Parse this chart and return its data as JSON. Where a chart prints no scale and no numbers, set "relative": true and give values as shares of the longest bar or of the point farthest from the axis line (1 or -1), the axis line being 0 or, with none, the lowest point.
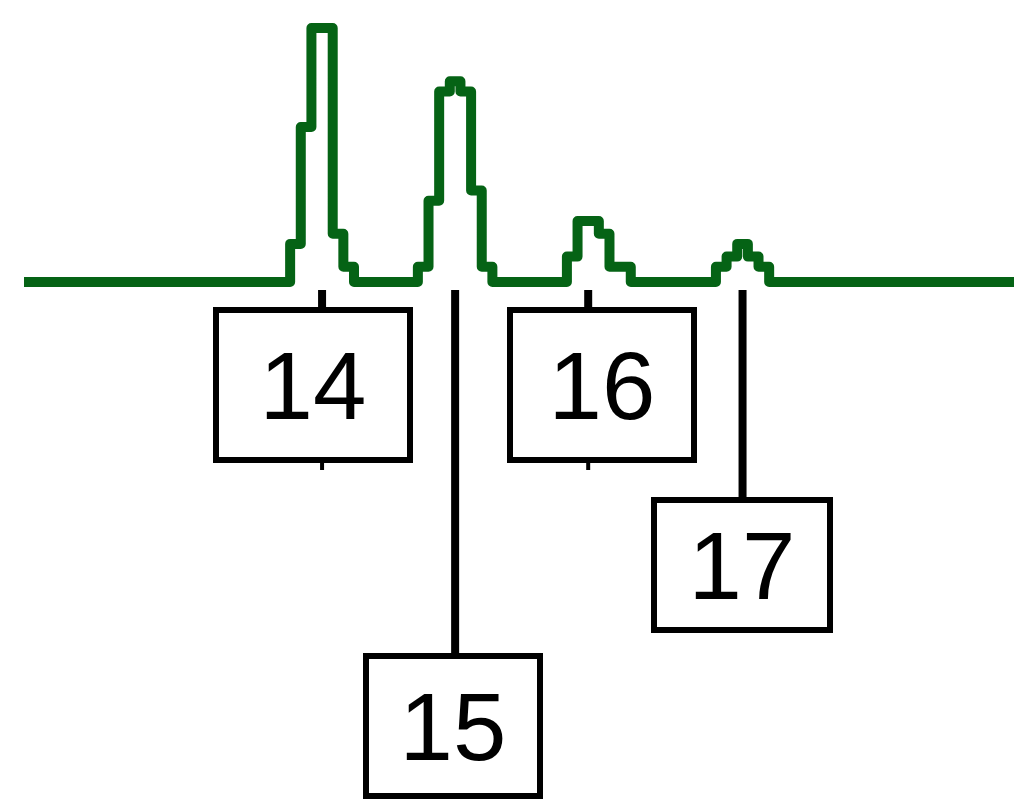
{
  "chart_data": {
    "type": "step",
    "relative": true,
    "categories": [
      null,
      null,
      null,
      null,
      null,
      null,
      null,
      null,
      null,
      null,
      null,
      null,
      null,
      null,
      null,
      null,
      null,
      null,
      null,
      null,
      null,
      null,
      null,
      null,
      null,
      null,
      null,
      null,
      null,
      null,
      null,
      null,
      null,
      null,
      null,
      null,
      null,
      null,
      null,
      null,
      null,
      null,
      null,
      null,
      null,
      null,
      null,
      null,
      null,
      null,
      null,
      null,
      null,
      null,
      null,
      null,
      null,
      null,
      null,
      null,
      null,
      null,
      null,
      null,
      null,
      null,
      null,
      null,
      null,
      null,
      null,
      null,
      null,
      null,
      null,
      null,
      null,
      null,
      null,
      null,
      null,
      null,
      null,
      null,
      null,
      null,
      null,
      null,
      null,
      null,
      null,
      null,
      null,
      null
    ],
    "series": [
      {
        "color": "#056315",
        "values": [
          0,
          0,
          0,
          0,
          0,
          0,
          0,
          0,
          0,
          0,
          0,
          0,
          0,
          0,
          0,
          0,
          0,
          0,
          0,
          0,
          0,
          0,
          0,
          0,
          0,
          0.15,
          0.61,
          1,
          1,
          0.19,
          0.06,
          0,
          0,
          0,
          0,
          0,
          0,
          0.06,
          0.32,
          0.75,
          0.79,
          0.75,
          0.36,
          0.06,
          0,
          0,
          0,
          0,
          0,
          0,
          0,
          0.1,
          0.24,
          0.24,
          0.19,
          0.06,
          0.06,
          0,
          0,
          0,
          0,
          0,
          0,
          0,
          0,
          0.06,
          0.1,
          0.15,
          0.1,
          0.06,
          0,
          0,
          0,
          0,
          0,
          0,
          0,
          0,
          0,
          0,
          0,
          0,
          0,
          0,
          0,
          0,
          0,
          0,
          0,
          0,
          0,
          0,
          0,
          0
        ]
      }
    ],
    "annotations": [
      "14",
      "15",
      "16",
      "17"
    ]
  }
}
